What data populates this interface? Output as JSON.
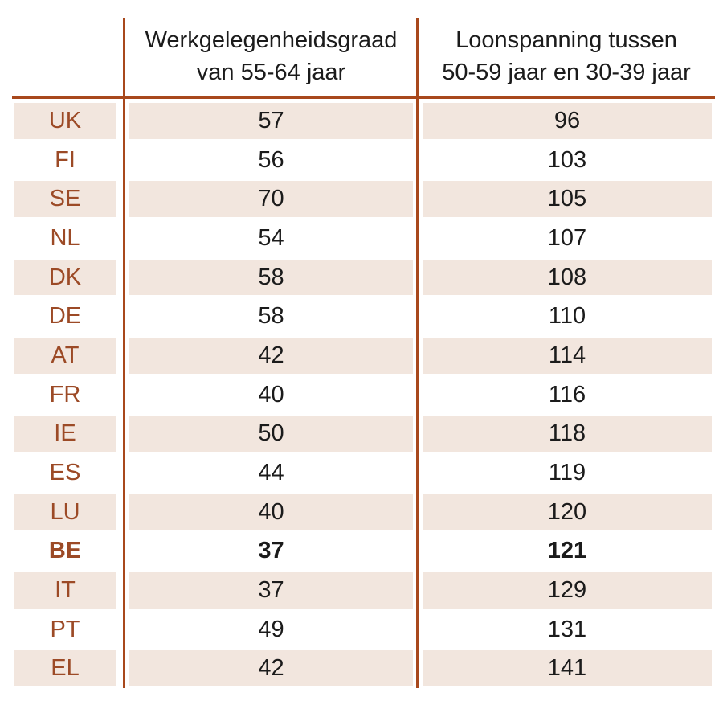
{
  "colors": {
    "divider": "#a8481c",
    "country_text": "#9c4a26",
    "value_text": "#1b1b1b",
    "stripe_background": "#f2e6de",
    "page_background": "#ffffff"
  },
  "header": {
    "col_employment": {
      "line1": "Werkgelegenheidsgraad",
      "line2": "van 55-64 jaar"
    },
    "col_wagespan": {
      "line1": "Loonspanning tussen",
      "line2": "50-59 jaar en 30-39 jaar"
    }
  },
  "rows": [
    {
      "country": "UK",
      "employment": "57",
      "wagespan": "96",
      "bold": false
    },
    {
      "country": "FI",
      "employment": "56",
      "wagespan": "103",
      "bold": false
    },
    {
      "country": "SE",
      "employment": "70",
      "wagespan": "105",
      "bold": false
    },
    {
      "country": "NL",
      "employment": "54",
      "wagespan": "107",
      "bold": false
    },
    {
      "country": "DK",
      "employment": "58",
      "wagespan": "108",
      "bold": false
    },
    {
      "country": "DE",
      "employment": "58",
      "wagespan": "110",
      "bold": false
    },
    {
      "country": "AT",
      "employment": "42",
      "wagespan": "114",
      "bold": false
    },
    {
      "country": "FR",
      "employment": "40",
      "wagespan": "116",
      "bold": false
    },
    {
      "country": "IE",
      "employment": "50",
      "wagespan": "118",
      "bold": false
    },
    {
      "country": "ES",
      "employment": "44",
      "wagespan": "119",
      "bold": false
    },
    {
      "country": "LU",
      "employment": "40",
      "wagespan": "120",
      "bold": false
    },
    {
      "country": "BE",
      "employment": "37",
      "wagespan": "121",
      "bold": true
    },
    {
      "country": "IT",
      "employment": "37",
      "wagespan": "129",
      "bold": false
    },
    {
      "country": "PT",
      "employment": "49",
      "wagespan": "131",
      "bold": false
    },
    {
      "country": "EL",
      "employment": "42",
      "wagespan": "141",
      "bold": false
    }
  ],
  "chart_data": {
    "type": "table",
    "categories": [
      "UK",
      "FI",
      "SE",
      "NL",
      "DK",
      "DE",
      "AT",
      "FR",
      "IE",
      "ES",
      "LU",
      "BE",
      "IT",
      "PT",
      "EL"
    ],
    "series": [
      {
        "name": "Werkgelegenheidsgraad van 55-64 jaar",
        "values": [
          57,
          56,
          70,
          54,
          58,
          58,
          42,
          40,
          50,
          44,
          40,
          37,
          37,
          49,
          42
        ]
      },
      {
        "name": "Loonspanning tussen 50-59 jaar en 30-39 jaar",
        "values": [
          96,
          103,
          105,
          107,
          108,
          110,
          114,
          116,
          118,
          119,
          120,
          121,
          129,
          131,
          141
        ]
      }
    ],
    "highlighted_category": "BE",
    "sort_order": "ascending by Loonspanning",
    "layout": {
      "striped_rows": true,
      "column_dividers": 2,
      "header_rule": true
    }
  }
}
